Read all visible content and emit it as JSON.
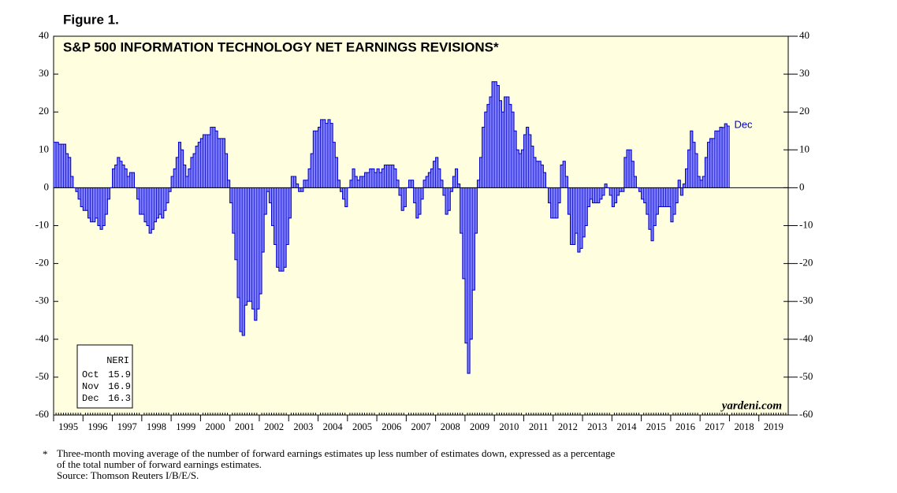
{
  "chart_data": {
    "type": "bar",
    "figure_label": "Figure 1.",
    "title": "S&P 500 INFORMATION TECHNOLOGY NET EARNINGS REVISIONS*",
    "source_mark": "yardeni.com",
    "end_label": "Dec",
    "footnote": [
      "*",
      "Three-month moving average of the number of forward earnings estimates up less number of estimates down, expressed as a percentage",
      "of the total number of forward earnings estimates.",
      "Source: Thomson Reuters I/B/E/S."
    ],
    "categories": [
      "1995",
      "1996",
      "1997",
      "1998",
      "1999",
      "2000",
      "2001",
      "2002",
      "2003",
      "2004",
      "2005",
      "2006",
      "2007",
      "2008",
      "2009",
      "2010",
      "2011",
      "2012",
      "2013",
      "2014",
      "2015",
      "2016",
      "2017",
      "2018",
      "2019"
    ],
    "values": [
      [
        12,
        12,
        11.5,
        11.5,
        11.5,
        9,
        8,
        3,
        0,
        -1,
        -3,
        -5
      ],
      [
        -6,
        -6,
        -8,
        -9,
        -9,
        -8,
        -10,
        -11,
        -10,
        -7,
        -3,
        0
      ],
      [
        5,
        6,
        8,
        7,
        6,
        5,
        3,
        4,
        4,
        0,
        -3,
        -7
      ],
      [
        -7,
        -9,
        -10,
        -12,
        -11,
        -9,
        -8,
        -7,
        -8,
        -6,
        -4,
        -1
      ],
      [
        3,
        5,
        8,
        12,
        10,
        6,
        3,
        5,
        8,
        9,
        11,
        12
      ],
      [
        13,
        14,
        14,
        14,
        16,
        16,
        15,
        13,
        13,
        13,
        9,
        2
      ],
      [
        -4,
        -12,
        -19,
        -29,
        -38,
        -39,
        -31,
        -30,
        -30,
        -32,
        -35,
        -32
      ],
      [
        -28,
        -17,
        -7,
        -1,
        -4,
        -10,
        -15,
        -21,
        -22,
        -22,
        -21,
        -15
      ],
      [
        -8,
        3,
        3,
        1,
        -1,
        -1,
        2,
        2,
        5,
        9,
        15,
        15
      ],
      [
        16,
        18,
        18,
        17,
        18,
        17,
        12,
        8,
        2,
        -1,
        -3,
        -5
      ],
      [
        0,
        2,
        5,
        3,
        2,
        3,
        3,
        4,
        4,
        5,
        5,
        4
      ],
      [
        5,
        4,
        5,
        6,
        6,
        6,
        6,
        5,
        2,
        -2,
        -6,
        -5
      ],
      [
        0,
        2,
        2,
        -4,
        -8,
        -7,
        -3,
        2,
        3,
        4,
        5,
        7
      ],
      [
        8,
        5,
        2,
        -2,
        -7,
        -6,
        -1,
        3,
        5,
        1,
        -12,
        -24
      ],
      [
        -41,
        -49,
        -40,
        -27,
        -12,
        2,
        8,
        16,
        20,
        22,
        24,
        28
      ],
      [
        28,
        27,
        23,
        20,
        24,
        24,
        22,
        20,
        15,
        10,
        9,
        10
      ],
      [
        14,
        16,
        14,
        11,
        8,
        7,
        7,
        6,
        4,
        0,
        -4,
        -8
      ],
      [
        -8,
        -8,
        -4,
        6,
        7,
        3,
        -7,
        -15,
        -15,
        -12,
        -17,
        -16
      ],
      [
        -13,
        -10,
        -5,
        -3,
        -4,
        -4,
        -4,
        -3,
        -2,
        1,
        0,
        -2
      ],
      [
        -5,
        -4,
        -2,
        -1,
        -1,
        8,
        10,
        10,
        7,
        3,
        0,
        -1
      ],
      [
        -3,
        -4,
        -7,
        -11,
        -14,
        -10,
        -7,
        -5,
        -5,
        -5,
        -5,
        -5
      ],
      [
        -9,
        -7,
        -4,
        2,
        -2,
        1,
        5,
        10,
        15,
        12,
        9,
        3
      ],
      [
        2,
        3,
        8,
        12,
        13,
        13,
        15,
        15,
        16,
        15.9,
        16.9,
        16.3
      ],
      [],
      []
    ],
    "color": "#7f7fff",
    "edge_color": "#0000c8",
    "background": "#ffffe0",
    "ylim": [
      -60,
      40
    ],
    "yticks": [
      -60,
      -50,
      -40,
      -30,
      -20,
      -10,
      0,
      10,
      20,
      30,
      40
    ],
    "table": {
      "header": "NERI",
      "rows": [
        [
          "Oct",
          15.9
        ],
        [
          "Nov",
          16.9
        ],
        [
          "Dec",
          16.3
        ]
      ]
    }
  }
}
